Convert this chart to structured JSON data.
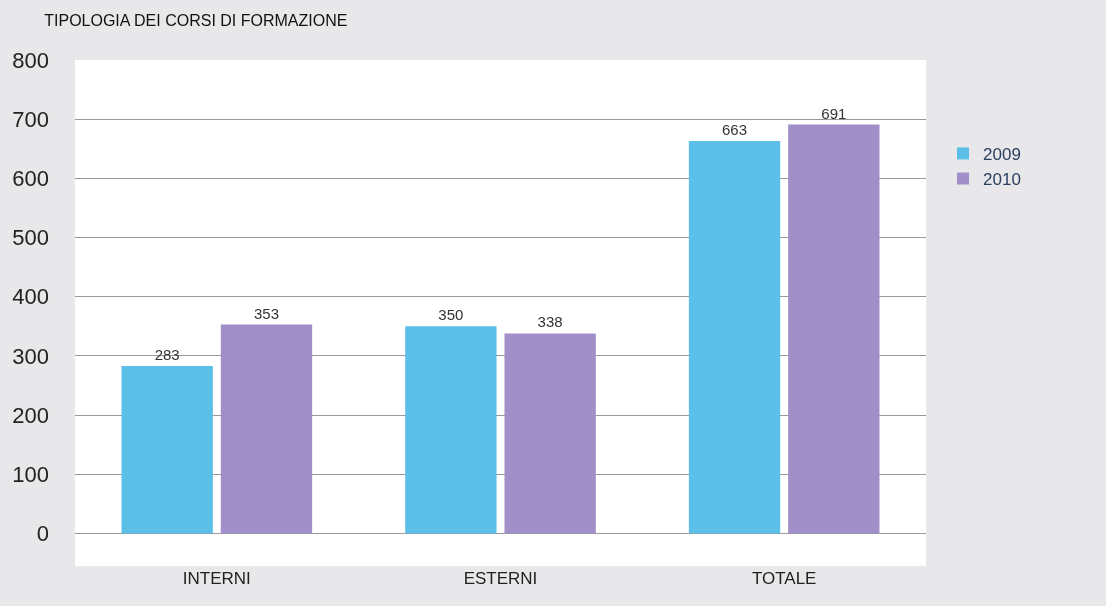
{
  "chart_data": {
    "type": "bar",
    "title": "TIPOLOGIA DEI CORSI DI FORMAZIONE",
    "categories": [
      "INTERNI",
      "ESTERNI",
      "TOTALE"
    ],
    "series": [
      {
        "name": "2009",
        "color": "#5bbfe8",
        "values": [
          283,
          350,
          663
        ]
      },
      {
        "name": "2010",
        "color": "#a08fc8",
        "values": [
          353,
          338,
          691
        ]
      }
    ],
    "ylim": [
      -55,
      800
    ],
    "yticks": [
      0,
      100,
      200,
      300,
      400,
      500,
      600,
      700,
      800
    ],
    "grid": "y",
    "legend": "right",
    "data_labels": true
  }
}
